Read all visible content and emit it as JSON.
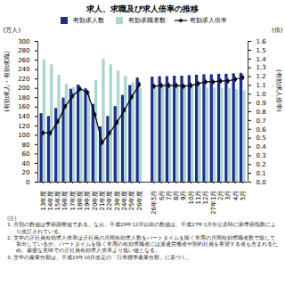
{
  "chart_data": {
    "type": "bar",
    "title": "求人、求職及び求人倍率の推移",
    "y_unit": "(万人)",
    "y_label": "(有効求人・有効求職)",
    "y2_unit": "(倍)",
    "y2_label": "(有効求人倍率)",
    "categories": [
      "13年度",
      "14年度",
      "15年度",
      "16年度",
      "17年度",
      "18年度",
      "19年度",
      "20年度",
      "21年度",
      "22年度",
      "23年度",
      "24年度",
      "25年度",
      "26年度",
      null,
      "26年5月",
      "6月",
      "7月",
      "8月",
      "9月",
      "10月",
      "11月",
      "12月",
      "27年1月",
      "2月",
      "3月",
      "4月",
      "5月"
    ],
    "series": [
      {
        "name": "有効求人数",
        "type": "bar",
        "color": "#1f2d8c",
        "values": [
          146,
          140,
          157,
          179,
          198,
          207,
          199,
          166,
          118,
          140,
          161,
          185,
          206,
          222,
          null,
          224,
          225,
          225,
          226,
          226,
          227,
          228,
          229,
          229,
          230,
          230,
          231,
          232
        ]
      },
      {
        "name": "有効求職者数",
        "type": "bar",
        "color": "#a9d6cf",
        "values": [
          261,
          250,
          228,
          208,
          202,
          195,
          195,
          216,
          262,
          250,
          237,
          226,
          212,
          200,
          null,
          206,
          205,
          205,
          205,
          207,
          206,
          204,
          201,
          201,
          200,
          200,
          197,
          195
        ]
      },
      {
        "name": "有効求人倍率",
        "type": "line",
        "axis": "y2",
        "color": "#000000",
        "marker": "diamond",
        "values": [
          0.56,
          0.56,
          0.69,
          0.86,
          0.98,
          1.06,
          1.02,
          0.77,
          0.45,
          0.56,
          0.68,
          0.82,
          0.97,
          1.11,
          null,
          1.09,
          1.1,
          1.1,
          1.1,
          1.09,
          1.1,
          1.12,
          1.14,
          1.14,
          1.15,
          1.15,
          1.17,
          1.19
        ]
      }
    ],
    "ylim": [
      0,
      300
    ],
    "yticks": [
      0,
      20,
      40,
      60,
      80,
      100,
      120,
      140,
      160,
      180,
      200,
      220,
      240,
      260,
      280,
      300
    ],
    "y2lim": [
      0,
      1.6
    ],
    "y2ticks": [
      {
        "value": 0,
        "label": "0.0"
      },
      0.1,
      0.2,
      0.3,
      0.4,
      0.5,
      0.6,
      0.7,
      0.8,
      0.9,
      {
        "value": 1,
        "label": "1.0"
      },
      1.1,
      1.2,
      1.3,
      1.4,
      1.5,
      1.6
    ],
    "grid": false,
    "legend": "top",
    "notes_title": "(注)",
    "notes": [
      "1. 月別の数値は季節調整値である。なお、平成26年12月以前の数値は、平成27年1月分公表時に新季節指数により改訂されている。",
      "2. 文中の正社員有効求人倍率は正社員の月間有効求人数をパートタイムを除く常用の月間有効求職者数で除して算出しているが、パートタイムを除く常用の有効求職者には派遣労働者や契約社員を希望する者も含まれるため、厳密な意味での正社員有効求人倍率より低い値となる。",
      "3. 文中の産業分類は、平成25年10月改定の「日本標準産業分類」に基づく。"
    ]
  }
}
